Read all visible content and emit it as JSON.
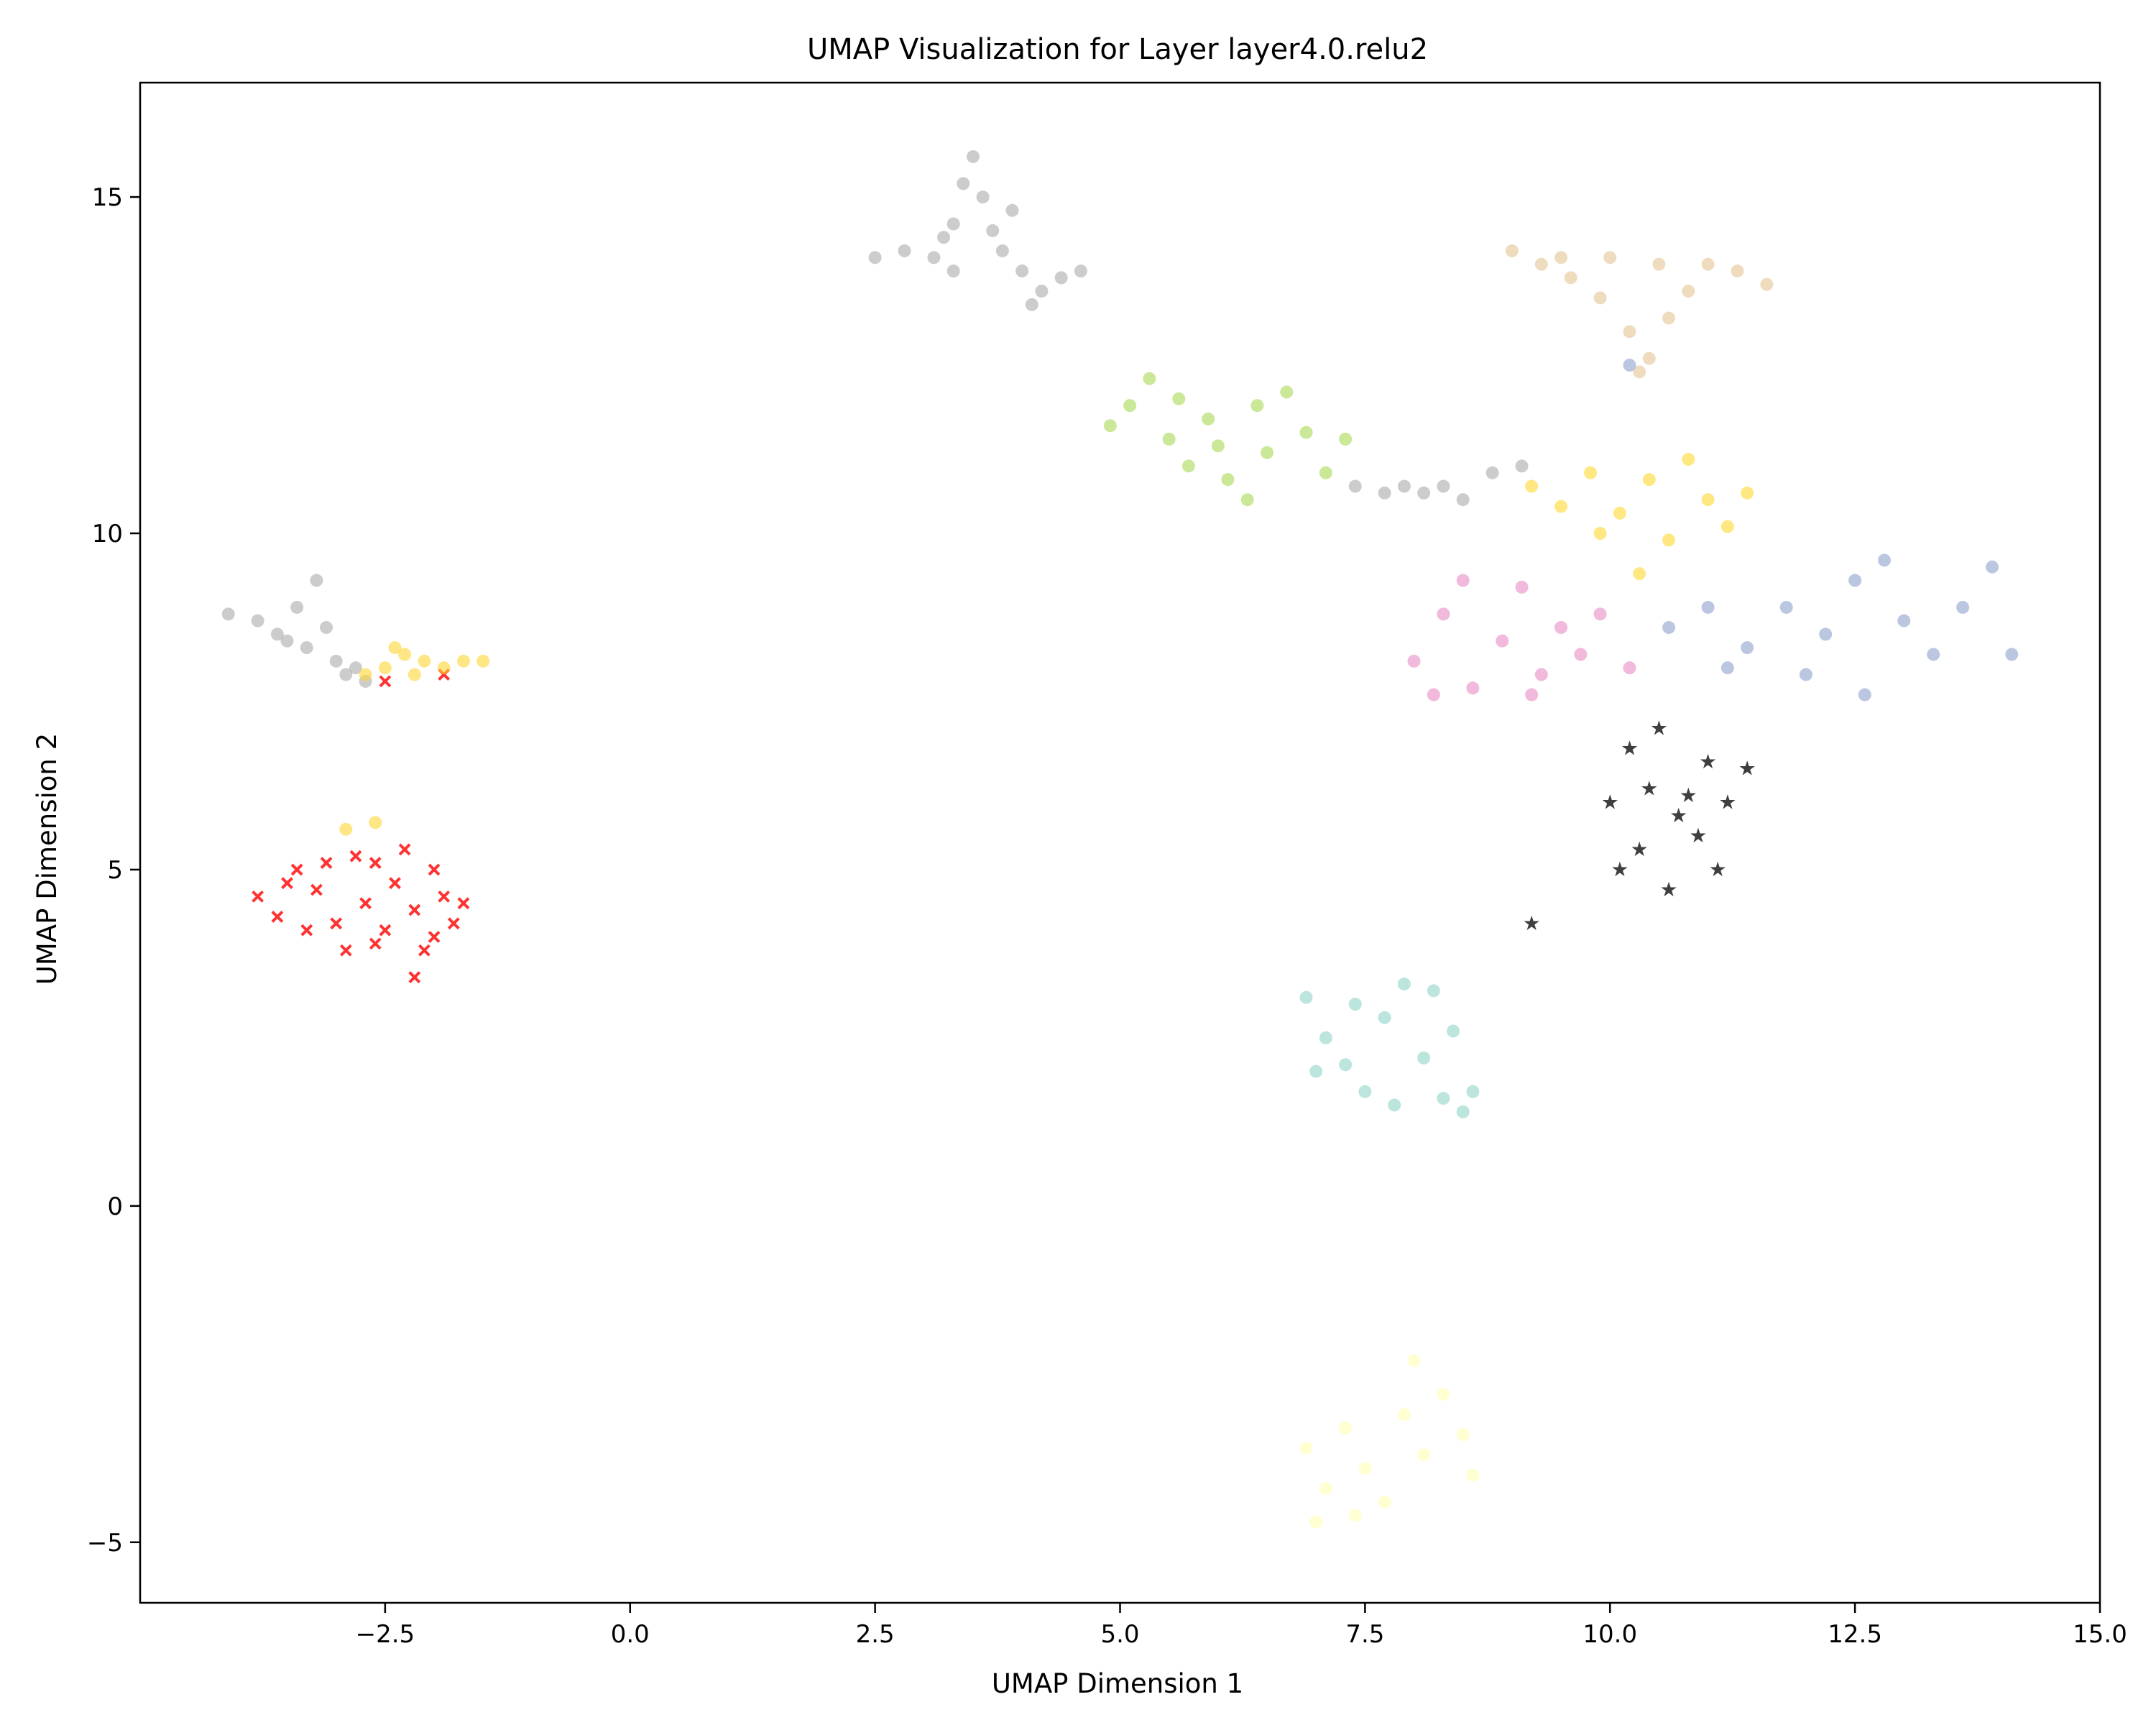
{
  "chart_data": {
    "type": "scatter",
    "title": "UMAP Visualization for Layer layer4.0.relu2",
    "xlabel": "UMAP Dimension 1",
    "ylabel": "UMAP Dimension 2",
    "xlim": [
      -5.0,
      15.0
    ],
    "ylim": [
      -5.9,
      16.7
    ],
    "xticks": [
      -2.5,
      0.0,
      2.5,
      5.0,
      7.5,
      10.0,
      12.5,
      15.0
    ],
    "xtick_labels": [
      "−2.5",
      "0.0",
      "2.5",
      "5.0",
      "7.5",
      "10.0",
      "12.5",
      "15.0"
    ],
    "yticks": [
      -5,
      0,
      5,
      10,
      15
    ],
    "ytick_labels": [
      "−5",
      "0",
      "5",
      "10",
      "15"
    ],
    "grid": false,
    "legend": "none",
    "series": [
      {
        "color": "#ff0000",
        "marker": "x",
        "points": [
          [
            -3.8,
            4.6
          ],
          [
            -3.6,
            4.3
          ],
          [
            -3.4,
            5.0
          ],
          [
            -3.2,
            4.7
          ],
          [
            -3.0,
            4.2
          ],
          [
            -2.8,
            5.2
          ],
          [
            -2.7,
            4.5
          ],
          [
            -2.6,
            3.9
          ],
          [
            -2.4,
            4.8
          ],
          [
            -2.3,
            5.3
          ],
          [
            -2.2,
            4.4
          ],
          [
            -2.1,
            3.8
          ],
          [
            -2.0,
            5.0
          ],
          [
            -1.9,
            4.6
          ],
          [
            -1.8,
            4.2
          ],
          [
            -3.5,
            4.8
          ],
          [
            -3.1,
            5.1
          ],
          [
            -2.9,
            3.8
          ],
          [
            -2.5,
            4.1
          ],
          [
            -2.2,
            3.4
          ],
          [
            -1.7,
            4.5
          ],
          [
            -3.3,
            4.1
          ],
          [
            -2.6,
            5.1
          ],
          [
            -2.0,
            4.0
          ],
          [
            -2.5,
            7.8
          ],
          [
            -1.9,
            7.9
          ]
        ]
      },
      {
        "color": "#aaaaaa",
        "marker": "o",
        "points": [
          [
            -4.1,
            8.8
          ],
          [
            -3.8,
            8.7
          ],
          [
            -3.6,
            8.5
          ],
          [
            -3.4,
            8.9
          ],
          [
            -3.3,
            8.3
          ],
          [
            -3.2,
            9.3
          ],
          [
            -3.0,
            8.1
          ],
          [
            -2.9,
            7.9
          ],
          [
            -2.8,
            8.0
          ],
          [
            -3.5,
            8.4
          ],
          [
            -3.1,
            8.6
          ],
          [
            -2.7,
            7.8
          ]
        ]
      },
      {
        "color": "#ffd633",
        "marker": "o",
        "points": [
          [
            -2.7,
            7.9
          ],
          [
            -2.5,
            8.0
          ],
          [
            -2.3,
            8.2
          ],
          [
            -2.1,
            8.1
          ],
          [
            -1.9,
            8.0
          ],
          [
            -1.7,
            8.1
          ],
          [
            -1.5,
            8.1
          ],
          [
            -2.2,
            7.9
          ],
          [
            -2.4,
            8.3
          ],
          [
            -2.6,
            5.7
          ],
          [
            -2.9,
            5.6
          ]
        ]
      },
      {
        "color": "#aaaaaa",
        "marker": "o",
        "points": [
          [
            2.5,
            14.1
          ],
          [
            2.8,
            14.2
          ],
          [
            3.1,
            14.1
          ],
          [
            3.2,
            14.4
          ],
          [
            3.3,
            14.6
          ],
          [
            3.4,
            15.2
          ],
          [
            3.5,
            15.6
          ],
          [
            3.6,
            15.0
          ],
          [
            3.7,
            14.5
          ],
          [
            3.8,
            14.2
          ],
          [
            4.0,
            13.9
          ],
          [
            4.2,
            13.6
          ],
          [
            4.4,
            13.8
          ],
          [
            4.6,
            13.9
          ],
          [
            3.9,
            14.8
          ],
          [
            3.3,
            13.9
          ],
          [
            4.1,
            13.4
          ]
        ]
      },
      {
        "color": "#e5c494",
        "marker": "o",
        "points": [
          [
            9.0,
            14.2
          ],
          [
            9.3,
            14.0
          ],
          [
            9.6,
            13.8
          ],
          [
            9.9,
            13.5
          ],
          [
            10.2,
            13.0
          ],
          [
            10.4,
            12.6
          ],
          [
            10.6,
            13.2
          ],
          [
            10.8,
            13.6
          ],
          [
            11.0,
            14.0
          ],
          [
            11.3,
            13.9
          ],
          [
            11.6,
            13.7
          ],
          [
            9.5,
            14.1
          ],
          [
            10.0,
            14.1
          ],
          [
            10.5,
            14.0
          ],
          [
            10.3,
            12.4
          ]
        ]
      },
      {
        "color": "#a6d854",
        "marker": "o",
        "points": [
          [
            4.9,
            11.6
          ],
          [
            5.1,
            11.9
          ],
          [
            5.3,
            12.3
          ],
          [
            5.5,
            11.4
          ],
          [
            5.7,
            11.0
          ],
          [
            5.9,
            11.7
          ],
          [
            6.1,
            10.8
          ],
          [
            6.3,
            10.5
          ],
          [
            6.5,
            11.2
          ],
          [
            6.7,
            12.1
          ],
          [
            6.9,
            11.5
          ],
          [
            7.1,
            10.9
          ],
          [
            5.6,
            12.0
          ],
          [
            6.0,
            11.3
          ],
          [
            6.4,
            11.9
          ],
          [
            7.3,
            11.4
          ]
        ]
      },
      {
        "color": "#aaaaaa",
        "marker": "o",
        "points": [
          [
            7.4,
            10.7
          ],
          [
            7.7,
            10.6
          ],
          [
            7.9,
            10.7
          ],
          [
            8.1,
            10.6
          ],
          [
            8.3,
            10.7
          ],
          [
            8.5,
            10.5
          ],
          [
            8.8,
            10.9
          ],
          [
            9.1,
            11.0
          ]
        ]
      },
      {
        "color": "#ffd92f",
        "marker": "o",
        "points": [
          [
            9.2,
            10.7
          ],
          [
            9.5,
            10.4
          ],
          [
            9.8,
            10.9
          ],
          [
            10.1,
            10.3
          ],
          [
            10.4,
            10.8
          ],
          [
            10.6,
            9.9
          ],
          [
            10.8,
            11.1
          ],
          [
            11.0,
            10.5
          ],
          [
            11.2,
            10.1
          ],
          [
            11.4,
            10.6
          ],
          [
            10.3,
            9.4
          ],
          [
            9.9,
            10.0
          ]
        ]
      },
      {
        "color": "#e78ac3",
        "marker": "o",
        "points": [
          [
            8.0,
            8.1
          ],
          [
            8.3,
            8.8
          ],
          [
            8.6,
            7.7
          ],
          [
            8.9,
            8.4
          ],
          [
            9.1,
            9.2
          ],
          [
            9.3,
            7.9
          ],
          [
            9.5,
            8.6
          ],
          [
            9.7,
            8.2
          ],
          [
            9.9,
            8.8
          ],
          [
            8.5,
            9.3
          ],
          [
            8.2,
            7.6
          ],
          [
            9.2,
            7.6
          ],
          [
            10.2,
            8.0
          ]
        ]
      },
      {
        "color": "#8da0cb",
        "marker": "o",
        "points": [
          [
            10.6,
            8.6
          ],
          [
            11.0,
            8.9
          ],
          [
            11.4,
            8.3
          ],
          [
            11.8,
            8.9
          ],
          [
            12.2,
            8.5
          ],
          [
            12.5,
            9.3
          ],
          [
            12.8,
            9.6
          ],
          [
            13.0,
            8.7
          ],
          [
            13.3,
            8.2
          ],
          [
            13.6,
            8.9
          ],
          [
            13.9,
            9.5
          ],
          [
            14.1,
            8.2
          ],
          [
            12.0,
            7.9
          ],
          [
            12.6,
            7.6
          ],
          [
            11.2,
            8.0
          ],
          [
            10.2,
            12.5
          ]
        ]
      },
      {
        "color": "#000000",
        "marker": "*",
        "points": [
          [
            10.0,
            6.0
          ],
          [
            10.2,
            6.8
          ],
          [
            10.3,
            5.3
          ],
          [
            10.5,
            7.1
          ],
          [
            10.6,
            4.7
          ],
          [
            10.8,
            6.1
          ],
          [
            10.9,
            5.5
          ],
          [
            11.0,
            6.6
          ],
          [
            11.1,
            5.0
          ],
          [
            11.2,
            6.0
          ],
          [
            11.4,
            6.5
          ],
          [
            10.4,
            6.2
          ],
          [
            10.7,
            5.8
          ],
          [
            10.1,
            5.0
          ],
          [
            9.2,
            4.2
          ]
        ]
      },
      {
        "color": "#8dd3c7",
        "marker": "o",
        "points": [
          [
            6.9,
            3.1
          ],
          [
            7.1,
            2.5
          ],
          [
            7.3,
            2.1
          ],
          [
            7.5,
            1.7
          ],
          [
            7.7,
            2.8
          ],
          [
            7.9,
            3.3
          ],
          [
            8.1,
            2.2
          ],
          [
            8.3,
            1.6
          ],
          [
            8.5,
            1.4
          ],
          [
            8.6,
            1.7
          ],
          [
            7.0,
            2.0
          ],
          [
            7.8,
            1.5
          ],
          [
            8.2,
            3.2
          ],
          [
            8.4,
            2.6
          ],
          [
            7.4,
            3.0
          ]
        ]
      },
      {
        "color": "#ffffb3",
        "marker": "o",
        "points": [
          [
            6.9,
            -3.6
          ],
          [
            7.1,
            -4.2
          ],
          [
            7.3,
            -3.3
          ],
          [
            7.5,
            -3.9
          ],
          [
            7.7,
            -4.4
          ],
          [
            7.9,
            -3.1
          ],
          [
            8.1,
            -3.7
          ],
          [
            8.3,
            -2.8
          ],
          [
            8.5,
            -3.4
          ],
          [
            8.6,
            -4.0
          ],
          [
            7.0,
            -4.7
          ],
          [
            8.0,
            -2.3
          ],
          [
            7.4,
            -4.6
          ]
        ]
      }
    ]
  }
}
